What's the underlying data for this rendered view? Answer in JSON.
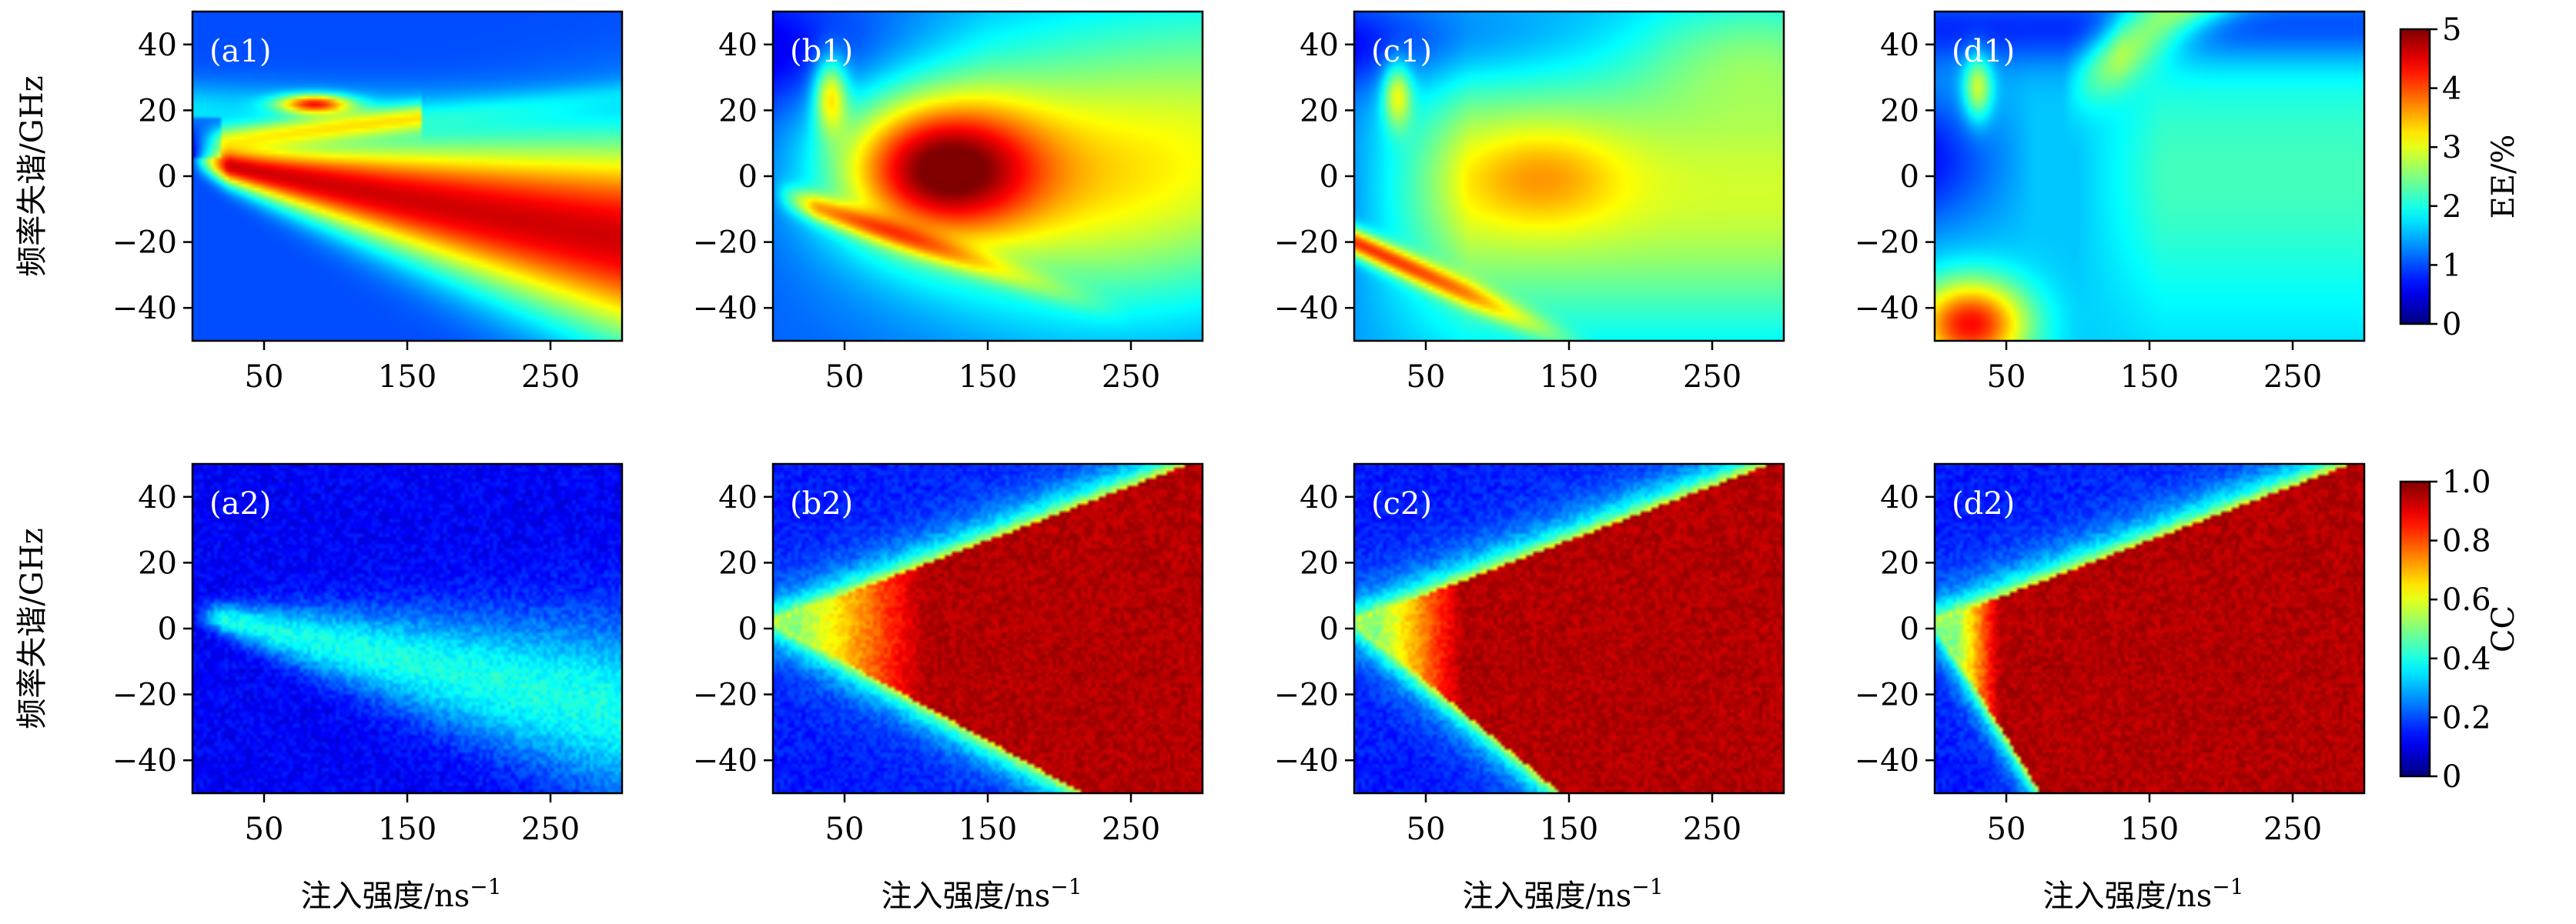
{
  "chart_data": {
    "type": "heatmap",
    "layout": {
      "rows": 2,
      "columns": 4
    },
    "shared_x": {
      "label": "注入强度/ns",
      "label_superscript": "−1",
      "range": [
        0,
        300
      ],
      "ticks": [
        50,
        150,
        250
      ],
      "tick_labels": [
        "50",
        "150",
        "250"
      ]
    },
    "shared_y": {
      "label": "频率失谐/GHz",
      "range": [
        -50,
        50
      ],
      "ticks": [
        40,
        20,
        0,
        -20,
        -40
      ],
      "tick_labels": [
        "40",
        "20",
        "0",
        "−20",
        "−40"
      ]
    },
    "colormap": "jet",
    "rows": [
      {
        "colorbar": {
          "label": "EE/%",
          "range": [
            0,
            5
          ],
          "ticks": [
            0,
            1,
            2,
            3,
            4,
            5
          ],
          "tick_labels": [
            "0",
            "1",
            "2",
            "3",
            "4",
            "5"
          ]
        },
        "panels": [
          {
            "label": "(a1)"
          },
          {
            "label": "(b1)"
          },
          {
            "label": "(c1)"
          },
          {
            "label": "(d1)"
          }
        ]
      },
      {
        "colorbar": {
          "label": "CC",
          "range": [
            0,
            1
          ],
          "ticks": [
            0,
            0.2,
            0.4,
            0.6,
            0.8,
            1.0
          ],
          "tick_labels": [
            "0",
            "0.2",
            "0.4",
            "0.6",
            "0.8",
            "1.0"
          ]
        },
        "panels": [
          {
            "label": "(a2)"
          },
          {
            "label": "(b2)"
          },
          {
            "label": "(c2)"
          },
          {
            "label": "(d2)"
          }
        ]
      }
    ]
  }
}
